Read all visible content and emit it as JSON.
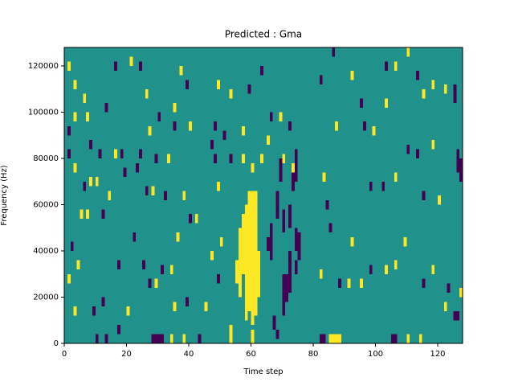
{
  "chart_data": {
    "type": "heatmap",
    "title": "Predicted : Gma",
    "x_label": "Time step",
    "y_label": "Frequency (Hz)",
    "xlim": [
      0,
      128
    ],
    "ylim": [
      0,
      128000
    ],
    "xticks": [
      0,
      20,
      40,
      60,
      80,
      100,
      120
    ],
    "yticks": [
      0,
      20000,
      40000,
      60000,
      80000,
      100000,
      120000
    ],
    "fill_value": 0,
    "colors": {
      "-1": "#440154",
      "0": "#21918c",
      "1": "#fde725"
    },
    "cells": [
      [
        10,
        0,
        4000,
        -1
      ],
      [
        13,
        0,
        4000,
        -1
      ],
      [
        17,
        4000,
        8000,
        -1
      ],
      [
        28,
        0,
        4000,
        -1
      ],
      [
        29,
        0,
        4000,
        -1
      ],
      [
        30,
        0,
        4000,
        -1
      ],
      [
        31,
        0,
        4000,
        -1
      ],
      [
        34,
        0,
        4000,
        1
      ],
      [
        38,
        0,
        4000,
        1
      ],
      [
        43,
        0,
        4000,
        -1
      ],
      [
        53,
        0,
        8000,
        1
      ],
      [
        60,
        0,
        6000,
        1
      ],
      [
        67,
        6000,
        12000,
        -1
      ],
      [
        68,
        2000,
        6000,
        -1
      ],
      [
        82,
        0,
        4000,
        -1
      ],
      [
        83,
        0,
        4000,
        -1
      ],
      [
        85,
        0,
        4000,
        1
      ],
      [
        86,
        0,
        4000,
        1
      ],
      [
        87,
        0,
        4000,
        1
      ],
      [
        88,
        0,
        4000,
        1
      ],
      [
        105,
        0,
        4000,
        -1
      ],
      [
        106,
        0,
        4000,
        -1
      ],
      [
        110,
        0,
        4000,
        1
      ],
      [
        114,
        0,
        4000,
        1
      ],
      [
        125,
        10000,
        14000,
        -1
      ],
      [
        126,
        10000,
        14000,
        -1
      ],
      [
        3,
        12000,
        16000,
        1
      ],
      [
        9,
        12000,
        16000,
        -1
      ],
      [
        12,
        16000,
        20000,
        -1
      ],
      [
        20,
        12000,
        16000,
        1
      ],
      [
        35,
        14000,
        18000,
        1
      ],
      [
        39,
        16000,
        20000,
        -1
      ],
      [
        45,
        14000,
        18000,
        1
      ],
      [
        58,
        10000,
        60000,
        1
      ],
      [
        59,
        14000,
        66000,
        1
      ],
      [
        60,
        8000,
        66000,
        1
      ],
      [
        61,
        12000,
        66000,
        1
      ],
      [
        56,
        20000,
        50000,
        1
      ],
      [
        57,
        30000,
        56000,
        1
      ],
      [
        62,
        20000,
        40000,
        1
      ],
      [
        55,
        26000,
        36000,
        1
      ],
      [
        70,
        12000,
        30000,
        -1
      ],
      [
        71,
        18000,
        30000,
        -1
      ],
      [
        72,
        22000,
        40000,
        -1
      ],
      [
        72,
        50000,
        60000,
        -1
      ],
      [
        70,
        48000,
        58000,
        -1
      ],
      [
        74,
        40000,
        50000,
        -1
      ],
      [
        75,
        36000,
        48000,
        -1
      ],
      [
        74,
        70000,
        84000,
        -1
      ],
      [
        69,
        70000,
        80000,
        -1
      ],
      [
        68,
        54000,
        66000,
        -1
      ],
      [
        66,
        36000,
        52000,
        -1
      ],
      [
        65,
        40000,
        46000,
        -1
      ],
      [
        74,
        30000,
        36000,
        -1
      ],
      [
        73,
        66000,
        76000,
        -1
      ],
      [
        1,
        26000,
        30000,
        1
      ],
      [
        2,
        40000,
        44000,
        -1
      ],
      [
        4,
        32000,
        36000,
        1
      ],
      [
        5,
        54000,
        58000,
        1
      ],
      [
        7,
        54000,
        58000,
        1
      ],
      [
        6,
        66000,
        70000,
        -1
      ],
      [
        8,
        68000,
        72000,
        1
      ],
      [
        10,
        68000,
        72000,
        1
      ],
      [
        3,
        74000,
        78000,
        1
      ],
      [
        1,
        80000,
        84000,
        -1
      ],
      [
        11,
        80000,
        84000,
        -1
      ],
      [
        16,
        80000,
        84000,
        1
      ],
      [
        12,
        54000,
        58000,
        -1
      ],
      [
        18,
        80000,
        84000,
        -1
      ],
      [
        24,
        80000,
        84000,
        -1
      ],
      [
        29,
        78000,
        82000,
        -1
      ],
      [
        33,
        78000,
        82000,
        1
      ],
      [
        22,
        44000,
        48000,
        -1
      ],
      [
        25,
        32000,
        36000,
        -1
      ],
      [
        17,
        32000,
        36000,
        -1
      ],
      [
        31,
        30000,
        34000,
        -1
      ],
      [
        34,
        30000,
        34000,
        1
      ],
      [
        27,
        24000,
        28000,
        -1
      ],
      [
        29,
        24000,
        28000,
        1
      ],
      [
        36,
        44000,
        48000,
        1
      ],
      [
        38,
        62000,
        66000,
        1
      ],
      [
        32,
        62000,
        66000,
        -1
      ],
      [
        40,
        52000,
        56000,
        -1
      ],
      [
        42,
        52000,
        56000,
        1
      ],
      [
        47,
        36000,
        40000,
        1
      ],
      [
        49,
        26000,
        30000,
        -1
      ],
      [
        50,
        42000,
        46000,
        1
      ],
      [
        49,
        66000,
        70000,
        1
      ],
      [
        47,
        84000,
        88000,
        -1
      ],
      [
        48,
        78000,
        82000,
        -1
      ],
      [
        53,
        78000,
        82000,
        -1
      ],
      [
        57,
        78000,
        82000,
        1
      ],
      [
        60,
        74000,
        78000,
        1
      ],
      [
        63,
        78000,
        82000,
        1
      ],
      [
        65,
        86000,
        90000,
        1
      ],
      [
        70,
        78000,
        82000,
        1
      ],
      [
        73,
        74000,
        78000,
        1
      ],
      [
        83,
        70000,
        74000,
        1
      ],
      [
        84,
        58000,
        62000,
        -1
      ],
      [
        85,
        48000,
        52000,
        -1
      ],
      [
        82,
        28000,
        32000,
        1
      ],
      [
        88,
        24000,
        28000,
        -1
      ],
      [
        91,
        24000,
        28000,
        1
      ],
      [
        95,
        24000,
        28000,
        1
      ],
      [
        98,
        66000,
        70000,
        -1
      ],
      [
        102,
        66000,
        70000,
        -1
      ],
      [
        106,
        70000,
        74000,
        1
      ],
      [
        115,
        62000,
        66000,
        -1
      ],
      [
        120,
        60000,
        64000,
        1
      ],
      [
        118,
        84000,
        88000,
        1
      ],
      [
        113,
        80000,
        84000,
        -1
      ],
      [
        110,
        82000,
        86000,
        -1
      ],
      [
        99,
        90000,
        94000,
        1
      ],
      [
        96,
        92000,
        96000,
        -1
      ],
      [
        87,
        92000,
        96000,
        1
      ],
      [
        92,
        42000,
        46000,
        1
      ],
      [
        98,
        30000,
        34000,
        -1
      ],
      [
        103,
        30000,
        34000,
        1
      ],
      [
        106,
        32000,
        36000,
        1
      ],
      [
        109,
        42000,
        46000,
        1
      ],
      [
        115,
        24000,
        28000,
        -1
      ],
      [
        118,
        30000,
        34000,
        1
      ],
      [
        123,
        22000,
        26000,
        -1
      ],
      [
        127,
        20000,
        24000,
        1
      ],
      [
        122,
        14000,
        18000,
        1
      ],
      [
        127,
        70000,
        80000,
        -1
      ],
      [
        126,
        74000,
        84000,
        -1
      ],
      [
        125,
        104000,
        112000,
        -1
      ],
      [
        122,
        108000,
        112000,
        1
      ],
      [
        118,
        110000,
        114000,
        1
      ],
      [
        115,
        106000,
        110000,
        1
      ],
      [
        113,
        114000,
        118000,
        -1
      ],
      [
        110,
        124000,
        128000,
        1
      ],
      [
        106,
        118000,
        122000,
        1
      ],
      [
        103,
        118000,
        122000,
        -1
      ],
      [
        92,
        114000,
        118000,
        1
      ],
      [
        86,
        124000,
        128000,
        -1
      ],
      [
        82,
        112000,
        116000,
        -1
      ],
      [
        95,
        102000,
        106000,
        -1
      ],
      [
        103,
        102000,
        106000,
        1
      ],
      [
        1,
        118000,
        122000,
        1
      ],
      [
        3,
        110000,
        114000,
        1
      ],
      [
        6,
        104000,
        108000,
        1
      ],
      [
        3,
        96000,
        100000,
        1
      ],
      [
        1,
        90000,
        94000,
        -1
      ],
      [
        7,
        96000,
        100000,
        1
      ],
      [
        8,
        84000,
        88000,
        -1
      ],
      [
        13,
        100000,
        104000,
        -1
      ],
      [
        16,
        118000,
        122000,
        -1
      ],
      [
        21,
        120000,
        124000,
        1
      ],
      [
        24,
        118000,
        122000,
        -1
      ],
      [
        26,
        106000,
        110000,
        1
      ],
      [
        27,
        90000,
        94000,
        1
      ],
      [
        30,
        96000,
        100000,
        -1
      ],
      [
        35,
        100000,
        104000,
        1
      ],
      [
        35,
        92000,
        96000,
        -1
      ],
      [
        40,
        92000,
        96000,
        1
      ],
      [
        39,
        110000,
        114000,
        -1
      ],
      [
        37,
        116000,
        120000,
        1
      ],
      [
        49,
        110000,
        114000,
        1
      ],
      [
        48,
        92000,
        96000,
        -1
      ],
      [
        51,
        88000,
        92000,
        -1
      ],
      [
        53,
        106000,
        110000,
        1
      ],
      [
        57,
        90000,
        94000,
        1
      ],
      [
        59,
        108000,
        112000,
        -1
      ],
      [
        66,
        96000,
        100000,
        -1
      ],
      [
        69,
        96000,
        100000,
        1
      ],
      [
        72,
        92000,
        96000,
        -1
      ],
      [
        63,
        116000,
        120000,
        -1
      ],
      [
        19,
        72000,
        76000,
        -1
      ],
      [
        23,
        74000,
        78000,
        -1
      ],
      [
        14,
        62000,
        66000,
        1
      ],
      [
        26,
        64000,
        68000,
        -1
      ],
      [
        28,
        64000,
        68000,
        1
      ]
    ]
  }
}
